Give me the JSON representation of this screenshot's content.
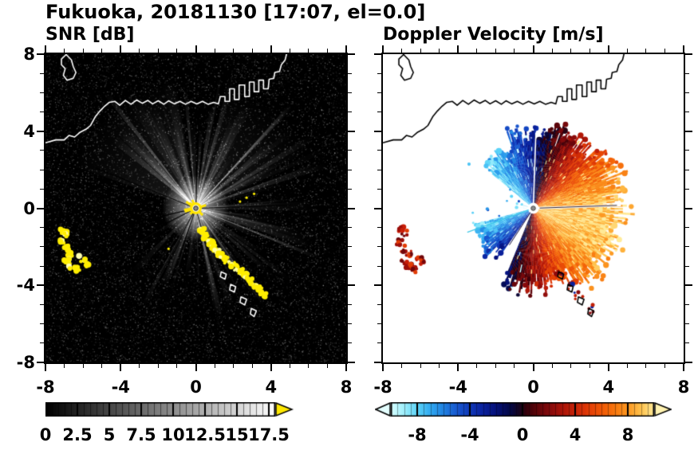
{
  "title": "Fukuoka, 20181130 [17:07, el=0.0]",
  "panels": {
    "snr": {
      "title": "SNR [dB]"
    },
    "doppler": {
      "title": "Doppler Velocity [m/s]"
    }
  },
  "axes": {
    "range": [
      -8,
      8
    ],
    "minor_tick_step": 1,
    "x_tick_values": [
      -8,
      -4,
      0,
      4,
      8
    ],
    "x_tick_labels": [
      "-8",
      "-4",
      "0",
      "4",
      "8"
    ],
    "y_tick_values": [
      8,
      4,
      0,
      -4,
      -8
    ],
    "y_tick_labels": [
      "8",
      "4",
      "0",
      "-4",
      "-8"
    ]
  },
  "colorbars": {
    "snr": {
      "range": [
        0,
        18
      ],
      "tick_values": [
        0,
        2.5,
        5,
        7.5,
        10,
        12.5,
        15,
        17.5
      ],
      "tick_labels": [
        "0",
        "2.5",
        "5",
        "7.5",
        "10",
        "12.5",
        "15",
        "17.5"
      ],
      "palette": "black-to-white",
      "overflow_arrow_color": "#ffe800"
    },
    "doppler": {
      "range": [
        -10,
        10
      ],
      "tick_values": [
        -8,
        -4,
        0,
        4,
        8
      ],
      "tick_labels": [
        "-8",
        "-4",
        "0",
        "4",
        "8"
      ],
      "under_arrow_color": "#e4ffff",
      "over_arrow_color": "#fff2b0",
      "stops": [
        [
          -10,
          "#d8ffff"
        ],
        [
          -9,
          "#9ceefc"
        ],
        [
          -8,
          "#5cd4f8"
        ],
        [
          -7,
          "#30a8f0"
        ],
        [
          -6,
          "#2080e0"
        ],
        [
          -5,
          "#1858d0"
        ],
        [
          -4,
          "#1038b8"
        ],
        [
          -3,
          "#0a209c"
        ],
        [
          -2,
          "#051078"
        ],
        [
          -1,
          "#030848"
        ],
        [
          -0.25,
          "#16041e"
        ],
        [
          0.25,
          "#33000a"
        ],
        [
          1,
          "#5c0409"
        ],
        [
          2,
          "#840a0c"
        ],
        [
          3,
          "#aa1408"
        ],
        [
          4,
          "#c82408"
        ],
        [
          5,
          "#e23c06"
        ],
        [
          6,
          "#f05806"
        ],
        [
          7,
          "#f8770e"
        ],
        [
          8,
          "#fc9822"
        ],
        [
          9,
          "#ffc34e"
        ],
        [
          10,
          "#ffeb9a"
        ]
      ]
    }
  },
  "coastline": {
    "main": [
      [
        -8.0,
        3.4
      ],
      [
        -7.45,
        3.55
      ],
      [
        -7.0,
        3.55
      ],
      [
        -6.75,
        3.78
      ],
      [
        -6.45,
        3.7
      ],
      [
        -6.15,
        3.95
      ],
      [
        -5.85,
        4.1
      ],
      [
        -5.6,
        4.3
      ],
      [
        -5.35,
        4.75
      ],
      [
        -5.1,
        5.05
      ],
      [
        -4.85,
        5.3
      ],
      [
        -4.6,
        5.5
      ],
      [
        -4.3,
        5.55
      ],
      [
        -4.05,
        5.35
      ],
      [
        -3.75,
        5.6
      ],
      [
        -3.45,
        5.4
      ],
      [
        -3.15,
        5.62
      ],
      [
        -2.85,
        5.45
      ],
      [
        -2.55,
        5.6
      ],
      [
        -2.3,
        5.42
      ],
      [
        -2.0,
        5.58
      ],
      [
        -1.7,
        5.4
      ],
      [
        -1.45,
        5.58
      ],
      [
        -1.15,
        5.42
      ],
      [
        -0.85,
        5.55
      ],
      [
        -0.55,
        5.4
      ],
      [
        -0.25,
        5.55
      ],
      [
        0.05,
        5.42
      ],
      [
        0.35,
        5.55
      ],
      [
        0.65,
        5.4
      ],
      [
        0.95,
        5.5
      ],
      [
        1.2,
        5.42
      ],
      [
        1.3,
        5.8
      ],
      [
        1.55,
        5.8
      ],
      [
        1.55,
        5.55
      ],
      [
        1.8,
        5.55
      ],
      [
        1.8,
        6.2
      ],
      [
        2.05,
        6.2
      ],
      [
        2.05,
        5.65
      ],
      [
        2.3,
        5.65
      ],
      [
        2.3,
        6.4
      ],
      [
        2.6,
        6.4
      ],
      [
        2.6,
        5.8
      ],
      [
        2.85,
        5.8
      ],
      [
        2.85,
        6.55
      ],
      [
        3.1,
        6.55
      ],
      [
        3.1,
        6.05
      ],
      [
        3.35,
        6.05
      ],
      [
        3.35,
        6.65
      ],
      [
        3.6,
        6.65
      ],
      [
        3.6,
        6.2
      ],
      [
        3.85,
        6.2
      ],
      [
        3.9,
        6.7
      ],
      [
        4.15,
        6.75
      ],
      [
        4.2,
        7.05
      ],
      [
        4.45,
        7.1
      ],
      [
        4.55,
        7.45
      ],
      [
        4.75,
        7.7
      ],
      [
        4.85,
        8.1
      ]
    ],
    "island": [
      [
        -7.15,
        7.75
      ],
      [
        -6.9,
        7.98
      ],
      [
        -6.62,
        7.7
      ],
      [
        -6.52,
        7.35
      ],
      [
        -6.38,
        7.05
      ],
      [
        -6.52,
        6.75
      ],
      [
        -6.85,
        6.65
      ],
      [
        -7.05,
        6.9
      ],
      [
        -6.95,
        7.25
      ],
      [
        -7.15,
        7.45
      ]
    ],
    "south_islets": [
      [
        [
          1.35,
          -3.3
        ],
        [
          1.62,
          -3.42
        ],
        [
          1.55,
          -3.68
        ],
        [
          1.3,
          -3.55
        ]
      ],
      [
        [
          1.85,
          -3.95
        ],
        [
          2.12,
          -4.07
        ],
        [
          2.05,
          -4.35
        ],
        [
          1.8,
          -4.23
        ]
      ],
      [
        [
          2.4,
          -4.6
        ],
        [
          2.7,
          -4.72
        ],
        [
          2.6,
          -5.02
        ],
        [
          2.35,
          -4.88
        ]
      ],
      [
        [
          2.95,
          -5.2
        ],
        [
          3.22,
          -5.32
        ],
        [
          3.1,
          -5.62
        ],
        [
          2.9,
          -5.48
        ]
      ]
    ]
  },
  "chart_data": [
    {
      "type": "heatmap",
      "title": "SNR [dB]",
      "xlim": [
        -8,
        8
      ],
      "ylim": [
        -8,
        8
      ],
      "xticks": [
        -8,
        -4,
        0,
        4,
        8
      ],
      "yticks": [
        -8,
        -4,
        0,
        4,
        8
      ],
      "colorbar_range": [
        0,
        18
      ],
      "colorbar_ticks": [
        0,
        2.5,
        5,
        7.5,
        10,
        12.5,
        15,
        17.5
      ],
      "radar_center": [
        0,
        0
      ],
      "description": "PPI radar SNR field: dark speckled noise background, bright radial beams fanning out from the radar at the origin, saturated yellow echo at the radar site, a yellow ground-clutter arc along the coast to the southeast and yellow clutter patches far to the west-southwest; white coastline of Hakata Bay overlaid.",
      "clutter_arc": [
        [
          0.25,
          -1.05
        ],
        [
          0.45,
          -1.35
        ],
        [
          0.7,
          -1.7
        ],
        [
          0.95,
          -2.0
        ],
        [
          1.2,
          -2.3
        ],
        [
          1.5,
          -2.6
        ],
        [
          1.85,
          -2.85
        ],
        [
          2.2,
          -3.1
        ],
        [
          2.55,
          -3.4
        ],
        [
          2.85,
          -3.7
        ],
        [
          3.15,
          -4.05
        ],
        [
          3.45,
          -4.35
        ],
        [
          3.7,
          -4.55
        ]
      ],
      "west_clutter": [
        [
          -7.05,
          -1.1
        ],
        [
          -6.85,
          -1.3
        ],
        [
          -7.1,
          -1.75
        ],
        [
          -6.9,
          -2.1
        ],
        [
          -6.65,
          -2.35
        ],
        [
          -6.85,
          -2.75
        ],
        [
          -6.6,
          -3.05
        ],
        [
          -6.35,
          -3.2
        ],
        [
          -6.05,
          -2.6
        ],
        [
          -5.85,
          -2.85
        ]
      ],
      "specks": [
        [
          2.7,
          0.55
        ],
        [
          3.1,
          0.75
        ],
        [
          2.35,
          0.35
        ],
        [
          -1.45,
          -2.1
        ]
      ]
    },
    {
      "type": "heatmap",
      "title": "Doppler Velocity [m/s]",
      "xlim": [
        -8,
        8
      ],
      "ylim": [
        -8,
        8
      ],
      "xticks": [
        -8,
        -4,
        0,
        4,
        8
      ],
      "yticks": [
        -8,
        -4,
        0,
        4,
        8
      ],
      "colorbar_range": [
        -10,
        10
      ],
      "colorbar_ticks": [
        -8,
        -4,
        0,
        4,
        8
      ],
      "radar_center": [
        0,
        0
      ],
      "max_range_units": 4.6,
      "velocity_model": {
        "vmax": 9.3,
        "phase_deg": 15,
        "zero_isodop_azimuth_deg": 75
      },
      "description": "Doppler velocity fan on white background: negative (blue, toward radar) velocities to the north-northwest and in a small southwest wedge, positive (red/orange/yellow, away) velocities from northeast through east to south, darkest colors along the zero isodop; red clutter echoes far west-southwest; black coastline overlaid."
    }
  ]
}
